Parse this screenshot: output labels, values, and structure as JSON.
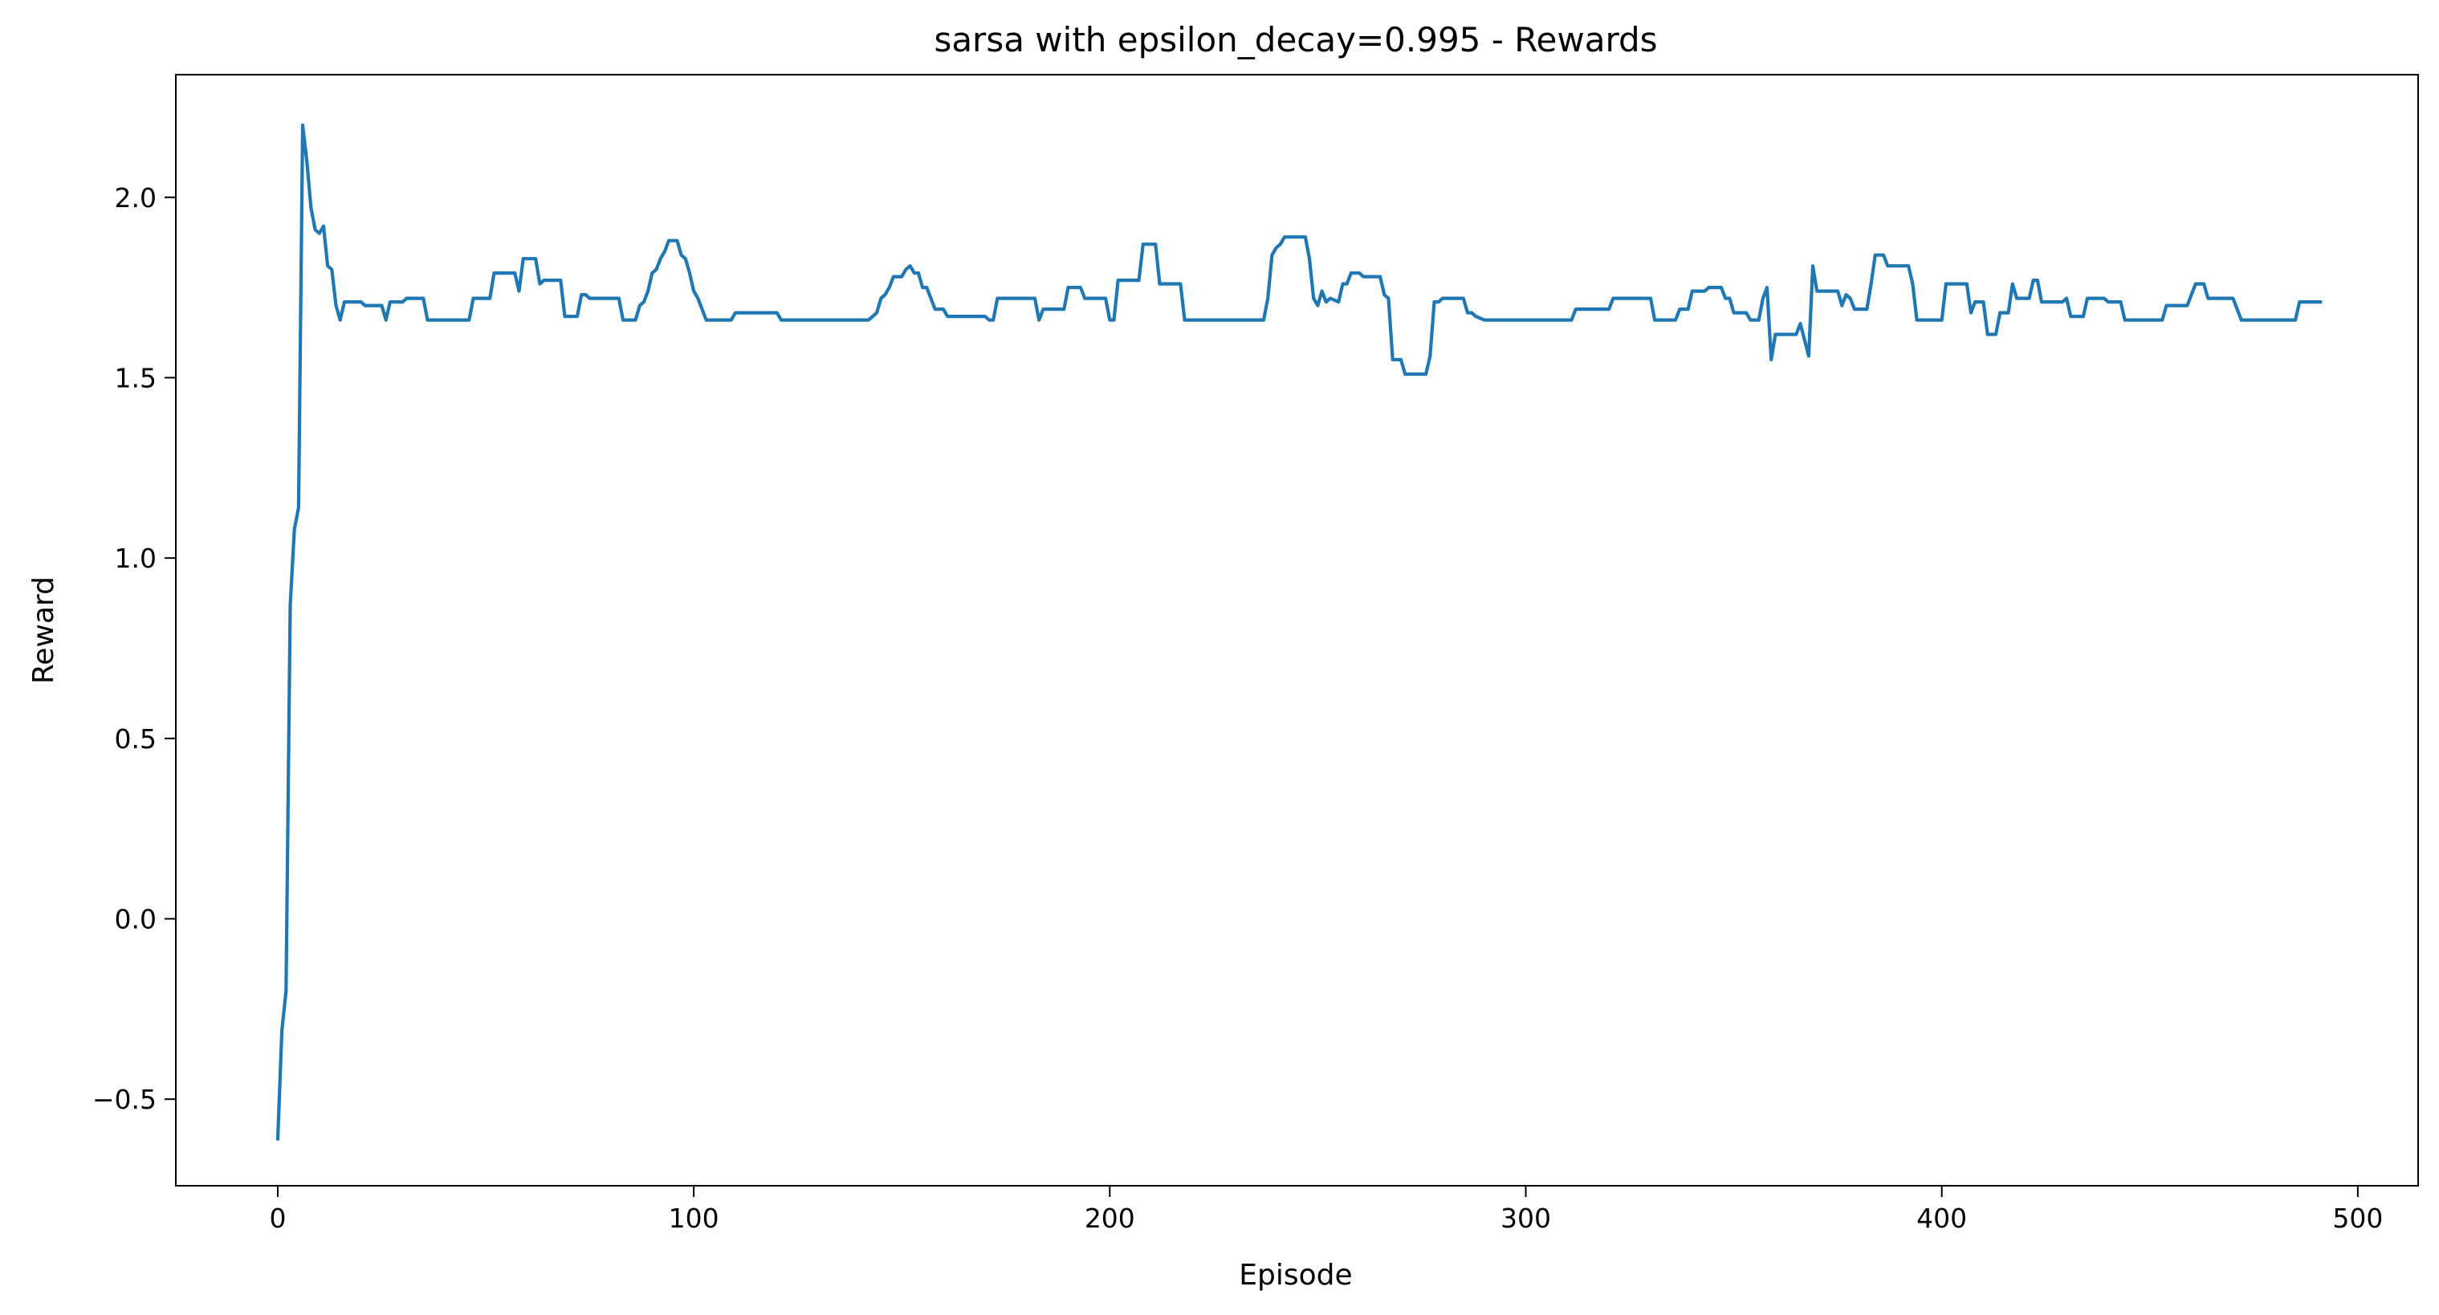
{
  "chart_data": {
    "type": "line",
    "title": "sarsa with epsilon_decay=0.995 - Rewards",
    "xlabel": "Episode",
    "ylabel": "Reward",
    "xlim": [
      -24.5,
      514.5
    ],
    "ylim": [
      -0.74,
      2.34
    ],
    "grid": false,
    "x_ticks": [
      0,
      100,
      200,
      300,
      400,
      500
    ],
    "y_ticks": [
      -0.5,
      0.0,
      0.5,
      1.0,
      1.5,
      2.0
    ],
    "x_tick_labels": [
      "0",
      "100",
      "200",
      "300",
      "400",
      "500"
    ],
    "y_tick_labels": [
      "−0.5",
      "0.0",
      "0.5",
      "1.0",
      "1.5",
      "2.0"
    ],
    "line_color": "#1f77b4",
    "series": [
      {
        "points": [
          [
            0,
            -0.61
          ],
          [
            1,
            -0.31
          ],
          [
            2,
            -0.2
          ],
          [
            3,
            0.87
          ],
          [
            4,
            1.08
          ],
          [
            5,
            1.14
          ],
          [
            6,
            2.2
          ],
          [
            7,
            2.1
          ],
          [
            8,
            1.97
          ],
          [
            9,
            1.91
          ],
          [
            10,
            1.9
          ],
          [
            11,
            1.92
          ],
          [
            12,
            1.81
          ],
          [
            13,
            1.8
          ],
          [
            14,
            1.7
          ],
          [
            15,
            1.66
          ],
          [
            16,
            1.71
          ],
          [
            20,
            1.71
          ],
          [
            21,
            1.7
          ],
          [
            25,
            1.7
          ],
          [
            26,
            1.66
          ],
          [
            27,
            1.71
          ],
          [
            30,
            1.71
          ],
          [
            31,
            1.72
          ],
          [
            34,
            1.72
          ],
          [
            35,
            1.72
          ],
          [
            36,
            1.66
          ],
          [
            46,
            1.66
          ],
          [
            47,
            1.72
          ],
          [
            51,
            1.72
          ],
          [
            52,
            1.79
          ],
          [
            57,
            1.79
          ],
          [
            58,
            1.74
          ],
          [
            59,
            1.83
          ],
          [
            62,
            1.83
          ],
          [
            63,
            1.76
          ],
          [
            64,
            1.77
          ],
          [
            68,
            1.77
          ],
          [
            69,
            1.67
          ],
          [
            72,
            1.67
          ],
          [
            73,
            1.73
          ],
          [
            74,
            1.73
          ],
          [
            75,
            1.72
          ],
          [
            82,
            1.72
          ],
          [
            83,
            1.66
          ],
          [
            86,
            1.66
          ],
          [
            87,
            1.7
          ],
          [
            88,
            1.71
          ],
          [
            89,
            1.74
          ],
          [
            90,
            1.79
          ],
          [
            91,
            1.8
          ],
          [
            92,
            1.83
          ],
          [
            93,
            1.85
          ],
          [
            94,
            1.88
          ],
          [
            96,
            1.88
          ],
          [
            97,
            1.84
          ],
          [
            98,
            1.83
          ],
          [
            99,
            1.79
          ],
          [
            100,
            1.74
          ],
          [
            101,
            1.72
          ],
          [
            102,
            1.69
          ],
          [
            103,
            1.66
          ],
          [
            109,
            1.66
          ],
          [
            110,
            1.68
          ],
          [
            120,
            1.68
          ],
          [
            121,
            1.66
          ],
          [
            142,
            1.66
          ],
          [
            143,
            1.67
          ],
          [
            144,
            1.68
          ],
          [
            145,
            1.72
          ],
          [
            146,
            1.73
          ],
          [
            147,
            1.75
          ],
          [
            148,
            1.78
          ],
          [
            150,
            1.78
          ],
          [
            151,
            1.8
          ],
          [
            152,
            1.81
          ],
          [
            153,
            1.79
          ],
          [
            154,
            1.79
          ],
          [
            155,
            1.75
          ],
          [
            156,
            1.75
          ],
          [
            157,
            1.72
          ],
          [
            158,
            1.69
          ],
          [
            160,
            1.69
          ],
          [
            161,
            1.67
          ],
          [
            170,
            1.67
          ],
          [
            171,
            1.66
          ],
          [
            172,
            1.66
          ],
          [
            173,
            1.72
          ],
          [
            182,
            1.72
          ],
          [
            183,
            1.66
          ],
          [
            184,
            1.69
          ],
          [
            189,
            1.69
          ],
          [
            190,
            1.75
          ],
          [
            193,
            1.75
          ],
          [
            194,
            1.72
          ],
          [
            199,
            1.72
          ],
          [
            200,
            1.66
          ],
          [
            201,
            1.66
          ],
          [
            202,
            1.77
          ],
          [
            207,
            1.77
          ],
          [
            208,
            1.87
          ],
          [
            211,
            1.87
          ],
          [
            212,
            1.76
          ],
          [
            217,
            1.76
          ],
          [
            218,
            1.66
          ],
          [
            237,
            1.66
          ],
          [
            238,
            1.72
          ],
          [
            239,
            1.84
          ],
          [
            240,
            1.86
          ],
          [
            241,
            1.87
          ],
          [
            242,
            1.89
          ],
          [
            247,
            1.89
          ],
          [
            248,
            1.83
          ],
          [
            249,
            1.72
          ],
          [
            250,
            1.7
          ],
          [
            251,
            1.74
          ],
          [
            252,
            1.71
          ],
          [
            253,
            1.72
          ],
          [
            255,
            1.71
          ],
          [
            256,
            1.76
          ],
          [
            257,
            1.76
          ],
          [
            258,
            1.79
          ],
          [
            260,
            1.79
          ],
          [
            261,
            1.78
          ],
          [
            265,
            1.78
          ],
          [
            266,
            1.73
          ],
          [
            267,
            1.72
          ],
          [
            268,
            1.55
          ],
          [
            270,
            1.55
          ],
          [
            271,
            1.51
          ],
          [
            276,
            1.51
          ],
          [
            277,
            1.56
          ],
          [
            278,
            1.71
          ],
          [
            279,
            1.71
          ],
          [
            280,
            1.72
          ],
          [
            285,
            1.72
          ],
          [
            286,
            1.68
          ],
          [
            287,
            1.68
          ],
          [
            288,
            1.67
          ],
          [
            290,
            1.66
          ],
          [
            311,
            1.66
          ],
          [
            312,
            1.69
          ],
          [
            320,
            1.69
          ],
          [
            321,
            1.72
          ],
          [
            330,
            1.72
          ],
          [
            331,
            1.66
          ],
          [
            336,
            1.66
          ],
          [
            337,
            1.69
          ],
          [
            339,
            1.69
          ],
          [
            340,
            1.74
          ],
          [
            343,
            1.74
          ],
          [
            344,
            1.75
          ],
          [
            347,
            1.75
          ],
          [
            348,
            1.72
          ],
          [
            349,
            1.72
          ],
          [
            350,
            1.68
          ],
          [
            353,
            1.68
          ],
          [
            354,
            1.66
          ],
          [
            356,
            1.66
          ],
          [
            357,
            1.72
          ],
          [
            358,
            1.75
          ],
          [
            359,
            1.55
          ],
          [
            360,
            1.62
          ],
          [
            365,
            1.62
          ],
          [
            366,
            1.65
          ],
          [
            368,
            1.56
          ],
          [
            369,
            1.81
          ],
          [
            370,
            1.74
          ],
          [
            375,
            1.74
          ],
          [
            376,
            1.7
          ],
          [
            377,
            1.73
          ],
          [
            378,
            1.72
          ],
          [
            379,
            1.69
          ],
          [
            382,
            1.69
          ],
          [
            383,
            1.76
          ],
          [
            384,
            1.84
          ],
          [
            386,
            1.84
          ],
          [
            387,
            1.81
          ],
          [
            392,
            1.81
          ],
          [
            393,
            1.76
          ],
          [
            394,
            1.66
          ],
          [
            400,
            1.66
          ],
          [
            401,
            1.76
          ],
          [
            406,
            1.76
          ],
          [
            407,
            1.68
          ],
          [
            408,
            1.71
          ],
          [
            410,
            1.71
          ],
          [
            411,
            1.62
          ],
          [
            413,
            1.62
          ],
          [
            414,
            1.68
          ],
          [
            416,
            1.68
          ],
          [
            417,
            1.76
          ],
          [
            418,
            1.72
          ],
          [
            421,
            1.72
          ],
          [
            422,
            1.77
          ],
          [
            423,
            1.77
          ],
          [
            424,
            1.71
          ],
          [
            429,
            1.71
          ],
          [
            430,
            1.72
          ],
          [
            431,
            1.67
          ],
          [
            434,
            1.67
          ],
          [
            435,
            1.72
          ],
          [
            439,
            1.72
          ],
          [
            440,
            1.71
          ],
          [
            443,
            1.71
          ],
          [
            444,
            1.66
          ],
          [
            453,
            1.66
          ],
          [
            454,
            1.7
          ],
          [
            459,
            1.7
          ],
          [
            460,
            1.73
          ],
          [
            461,
            1.76
          ],
          [
            463,
            1.76
          ],
          [
            464,
            1.72
          ],
          [
            470,
            1.72
          ],
          [
            471,
            1.69
          ],
          [
            472,
            1.66
          ],
          [
            485,
            1.66
          ],
          [
            486,
            1.71
          ],
          [
            487,
            1.71
          ],
          [
            491,
            1.71
          ]
        ]
      }
    ]
  }
}
